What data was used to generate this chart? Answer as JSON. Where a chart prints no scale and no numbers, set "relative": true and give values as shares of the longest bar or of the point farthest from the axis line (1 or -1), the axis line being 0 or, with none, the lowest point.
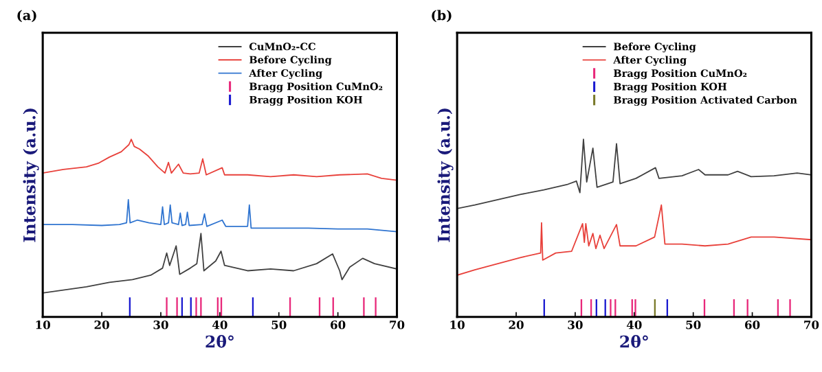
{
  "chart_data": [
    {
      "type": "line",
      "title": "(a)",
      "xlabel": "2θ°",
      "ylabel": "Intensity (a.u.)",
      "relative": true,
      "xlim": [
        10,
        70
      ],
      "xticks": [
        10,
        20,
        30,
        40,
        50,
        60,
        70
      ],
      "tick_labels": "x",
      "grid": false,
      "legend": "top right",
      "marker": "none",
      "line_style": "solid",
      "series": [
        {
          "name": "CuMnO₂-CC",
          "color": "#404040",
          "x": [
            10,
            17.4,
            21.3,
            25.2,
            28.3,
            30.3,
            31.0,
            31.5,
            32.6,
            33.2,
            35.0,
            36.1,
            36.8,
            37.3,
            39.3,
            40.2,
            40.8,
            44.7,
            48.6,
            52.5,
            56.4,
            59.1,
            60.3,
            60.7,
            62,
            64.2,
            66.2,
            70
          ],
          "values": [
            0.135,
            0.17,
            0.195,
            0.21,
            0.235,
            0.275,
            0.36,
            0.29,
            0.4,
            0.24,
            0.275,
            0.3,
            0.47,
            0.26,
            0.315,
            0.37,
            0.29,
            0.26,
            0.27,
            0.26,
            0.3,
            0.355,
            0.26,
            0.21,
            0.28,
            0.33,
            0.3,
            0.27
          ]
        },
        {
          "name": "Before Cycling",
          "color": "#e8403a",
          "x": [
            10,
            13.5,
            17.4,
            19.4,
            21.3,
            23.3,
            24.6,
            25.0,
            25.5,
            26.4,
            27.9,
            29.5,
            30.7,
            31.3,
            31.8,
            33.0,
            33.8,
            35.0,
            36.5,
            37.1,
            37.7,
            40.4,
            40.8,
            44.7,
            48.6,
            52.5,
            56.4,
            60.3,
            65.0,
            67.4,
            70
          ],
          "values": [
            0.81,
            0.83,
            0.845,
            0.865,
            0.9,
            0.93,
            0.97,
            1.0,
            0.96,
            0.945,
            0.905,
            0.845,
            0.81,
            0.87,
            0.81,
            0.86,
            0.81,
            0.805,
            0.81,
            0.89,
            0.8,
            0.84,
            0.8,
            0.8,
            0.79,
            0.8,
            0.79,
            0.8,
            0.805,
            0.78,
            0.77
          ]
        },
        {
          "name": "After Cycling",
          "color": "#2f74d0",
          "x": [
            10,
            15,
            20,
            23,
            24.2,
            24.5,
            24.8,
            26,
            28,
            30.0,
            30.3,
            30.6,
            31.3,
            31.6,
            31.9,
            33.0,
            33.3,
            33.6,
            34.2,
            34.5,
            34.8,
            37.0,
            37.4,
            37.8,
            40.4,
            41,
            44.7,
            45.0,
            45.3,
            50,
            55,
            60,
            65,
            70
          ],
          "values": [
            0.52,
            0.52,
            0.515,
            0.52,
            0.53,
            0.66,
            0.53,
            0.545,
            0.53,
            0.52,
            0.62,
            0.52,
            0.53,
            0.63,
            0.53,
            0.52,
            0.585,
            0.515,
            0.52,
            0.59,
            0.515,
            0.52,
            0.58,
            0.51,
            0.545,
            0.51,
            0.51,
            0.63,
            0.5,
            0.5,
            0.5,
            0.495,
            0.495,
            0.48
          ]
        },
        {
          "type": "bar",
          "name": "Bragg Position CuMnO₂",
          "color": "#e8287a",
          "x": [
            31.0,
            32.75,
            36.0,
            36.8,
            39.65,
            40.25,
            51.9,
            56.9,
            59.2,
            64.4,
            66.4
          ],
          "values": [
            0.11,
            0.11,
            0.11,
            0.11,
            0.11,
            0.11,
            0.11,
            0.11,
            0.11,
            0.11,
            0.11
          ]
        },
        {
          "type": "bar",
          "name": "Bragg Position KOH",
          "color": "#1a1ad0",
          "x": [
            24.75,
            33.6,
            35.1,
            45.6
          ],
          "values": [
            0.11,
            0.11,
            0.11,
            0.11
          ]
        }
      ]
    },
    {
      "type": "line",
      "title": "(b)",
      "xlabel": "2θ°",
      "ylabel": "Intensity (a.u.)",
      "relative": true,
      "xlim": [
        10,
        70
      ],
      "xticks": [
        10,
        20,
        30,
        40,
        50,
        60,
        70
      ],
      "tick_labels": "x",
      "grid": false,
      "legend": "top right",
      "marker": "none",
      "line_style": "solid",
      "series": [
        {
          "name": "Before Cycling",
          "color": "#404040",
          "x": [
            10,
            13.0,
            16.9,
            20.8,
            24.7,
            28.6,
            30.2,
            30.8,
            31.4,
            31.95,
            33.0,
            33.7,
            36.4,
            37.0,
            37.6,
            40.3,
            43.6,
            44.2,
            48.1,
            50.9,
            52.0,
            55.9,
            57.5,
            59.8,
            63.7,
            67.6,
            70
          ],
          "values": [
            0.61,
            0.63,
            0.66,
            0.69,
            0.715,
            0.745,
            0.765,
            0.7,
            1.0,
            0.76,
            0.95,
            0.73,
            0.76,
            0.975,
            0.75,
            0.78,
            0.84,
            0.78,
            0.795,
            0.83,
            0.8,
            0.8,
            0.82,
            0.79,
            0.795,
            0.81,
            0.8
          ]
        },
        {
          "name": "After Cycling",
          "color": "#e8403a",
          "x": [
            10,
            13.0,
            16.9,
            20.8,
            24.15,
            24.3,
            24.5,
            26.7,
            29.4,
            31.25,
            31.55,
            31.8,
            32.3,
            33.0,
            33.5,
            34.2,
            34.9,
            37.0,
            37.6,
            40.3,
            43.45,
            44.6,
            45.2,
            48.1,
            52.0,
            55.9,
            59.8,
            63.7,
            70
          ],
          "values": [
            0.235,
            0.265,
            0.3,
            0.335,
            0.36,
            0.53,
            0.32,
            0.36,
            0.37,
            0.525,
            0.42,
            0.525,
            0.4,
            0.47,
            0.385,
            0.46,
            0.385,
            0.52,
            0.4,
            0.4,
            0.45,
            0.63,
            0.41,
            0.41,
            0.4,
            0.41,
            0.45,
            0.45,
            0.435
          ]
        },
        {
          "type": "bar",
          "name": "Bragg Position CuMnO₂",
          "color": "#e8287a",
          "x": [
            31.05,
            32.7,
            36.0,
            36.8,
            39.65,
            40.2,
            51.9,
            56.9,
            59.2,
            64.35,
            66.4
          ],
          "values": [
            0.1,
            0.1,
            0.1,
            0.1,
            0.1,
            0.1,
            0.1,
            0.1,
            0.1,
            0.1,
            0.1
          ]
        },
        {
          "type": "bar",
          "name": "Bragg Position KOH",
          "color": "#1a1ad0",
          "x": [
            24.75,
            33.6,
            35.1,
            45.6
          ],
          "values": [
            0.1,
            0.1,
            0.1,
            0.1
          ]
        },
        {
          "type": "bar",
          "name": "Bragg Position Activated Carbon",
          "color": "#7a7a2a",
          "x": [
            43.5
          ],
          "values": [
            0.1
          ]
        }
      ]
    }
  ]
}
